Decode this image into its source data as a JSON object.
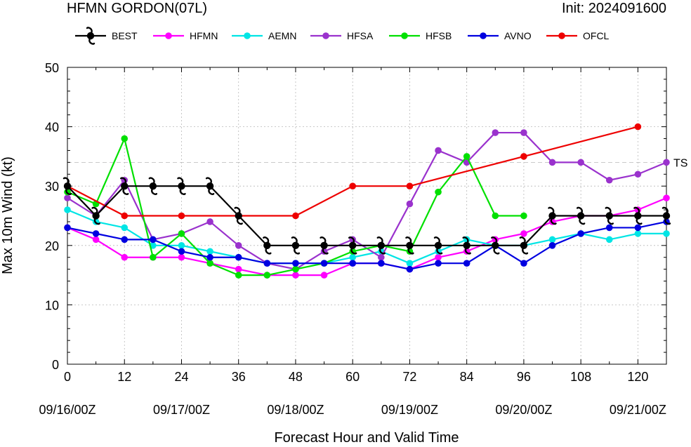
{
  "header": {
    "title": "HFMN GORDON(07L)",
    "init": "Init: 2024091600"
  },
  "legend": [
    {
      "name": "BEST",
      "color": "#000000",
      "marker": "hurricane-symbol"
    },
    {
      "name": "HFMN",
      "color": "#ff00ff",
      "marker": "dot"
    },
    {
      "name": "AEMN",
      "color": "#00e5e5",
      "marker": "dot"
    },
    {
      "name": "HFSA",
      "color": "#9a32cd",
      "marker": "dot"
    },
    {
      "name": "HFSB",
      "color": "#00e000",
      "marker": "dot"
    },
    {
      "name": "AVNO",
      "color": "#0000e0",
      "marker": "dot"
    },
    {
      "name": "OFCL",
      "color": "#ee0000",
      "marker": "dot"
    }
  ],
  "chart_data": {
    "type": "line",
    "title": "HFMN GORDON(07L)",
    "xlabel": "Forecast Hour and Valid Time",
    "ylabel": "Max 10m Wind (kt)",
    "xlim": [
      0,
      126
    ],
    "ylim": [
      0,
      50
    ],
    "xticks": [
      0,
      12,
      24,
      36,
      48,
      60,
      72,
      84,
      96,
      108,
      120
    ],
    "date_labels": [
      {
        "x": 0,
        "label": "09/16/00Z"
      },
      {
        "x": 24,
        "label": "09/17/00Z"
      },
      {
        "x": 48,
        "label": "09/18/00Z"
      },
      {
        "x": 72,
        "label": "09/19/00Z"
      },
      {
        "x": 96,
        "label": "09/20/00Z"
      },
      {
        "x": 120,
        "label": "09/21/00Z"
      }
    ],
    "yticks": [
      0,
      10,
      20,
      30,
      40,
      50
    ],
    "grid": true,
    "reference_lines": [
      {
        "y": 34,
        "label": "TS"
      }
    ],
    "series": [
      {
        "name": "BEST",
        "color": "#000000",
        "marker": "hurricane-symbol",
        "x": [
          0,
          6,
          12,
          18,
          24,
          30,
          36,
          42,
          48,
          54,
          60,
          66,
          72,
          78,
          84,
          90,
          96,
          102,
          108,
          114,
          120,
          126
        ],
        "y": [
          30,
          25,
          30,
          30,
          30,
          30,
          25,
          20,
          20,
          20,
          20,
          20,
          20,
          20,
          20,
          20,
          20,
          25,
          25,
          25,
          25,
          25
        ]
      },
      {
        "name": "HFMN",
        "color": "#ff00ff",
        "marker": "dot",
        "x": [
          0,
          6,
          12,
          18,
          24,
          30,
          36,
          42,
          48,
          54,
          60,
          66,
          72,
          78,
          84,
          90,
          96,
          102,
          108,
          114,
          120,
          126
        ],
        "y": [
          23,
          21,
          18,
          18,
          18,
          17,
          16,
          15,
          15,
          15,
          17,
          17,
          16,
          18,
          19,
          21,
          22,
          24,
          25,
          25,
          26,
          28
        ]
      },
      {
        "name": "AEMN",
        "color": "#00e5e5",
        "marker": "dot",
        "x": [
          0,
          6,
          12,
          18,
          24,
          30,
          36,
          42,
          48,
          54,
          60,
          66,
          72,
          78,
          84,
          90,
          96,
          102,
          108,
          114,
          120,
          126
        ],
        "y": [
          26,
          24,
          23,
          20,
          20,
          19,
          18,
          17,
          17,
          17,
          18,
          19,
          17,
          19,
          21,
          20,
          20,
          21,
          22,
          21,
          22,
          22
        ]
      },
      {
        "name": "HFSA",
        "color": "#9a32cd",
        "marker": "dot",
        "x": [
          0,
          6,
          12,
          18,
          24,
          30,
          36,
          42,
          48,
          54,
          60,
          66,
          72,
          78,
          84,
          90,
          96,
          102,
          108,
          114,
          120,
          126
        ],
        "y": [
          28,
          25,
          31,
          21,
          22,
          24,
          20,
          17,
          16,
          19,
          21,
          18,
          27,
          36,
          34,
          39,
          39,
          34,
          34,
          31,
          32,
          34
        ]
      },
      {
        "name": "HFSB",
        "color": "#00e000",
        "marker": "dot",
        "x": [
          0,
          6,
          12,
          18,
          24,
          30,
          36,
          42,
          48,
          54,
          60,
          66,
          72,
          78,
          84,
          90,
          96
        ],
        "y": [
          29,
          27,
          38,
          18,
          22,
          17,
          15,
          15,
          16,
          17,
          19,
          20,
          19,
          29,
          35,
          25,
          25
        ]
      },
      {
        "name": "AVNO",
        "color": "#0000e0",
        "marker": "dot",
        "x": [
          0,
          6,
          12,
          18,
          24,
          30,
          36,
          42,
          48,
          54,
          60,
          66,
          72,
          78,
          84,
          90,
          96,
          102,
          108,
          114,
          120,
          126
        ],
        "y": [
          23,
          22,
          21,
          21,
          19,
          18,
          18,
          17,
          17,
          17,
          17,
          17,
          16,
          17,
          17,
          20,
          17,
          20,
          22,
          23,
          23,
          24
        ]
      },
      {
        "name": "OFCL",
        "color": "#ee0000",
        "marker": "dot",
        "x": [
          0,
          12,
          24,
          36,
          48,
          60,
          72,
          96,
          120
        ],
        "y": [
          30,
          25,
          25,
          25,
          25,
          30,
          30,
          35,
          40
        ]
      }
    ]
  }
}
